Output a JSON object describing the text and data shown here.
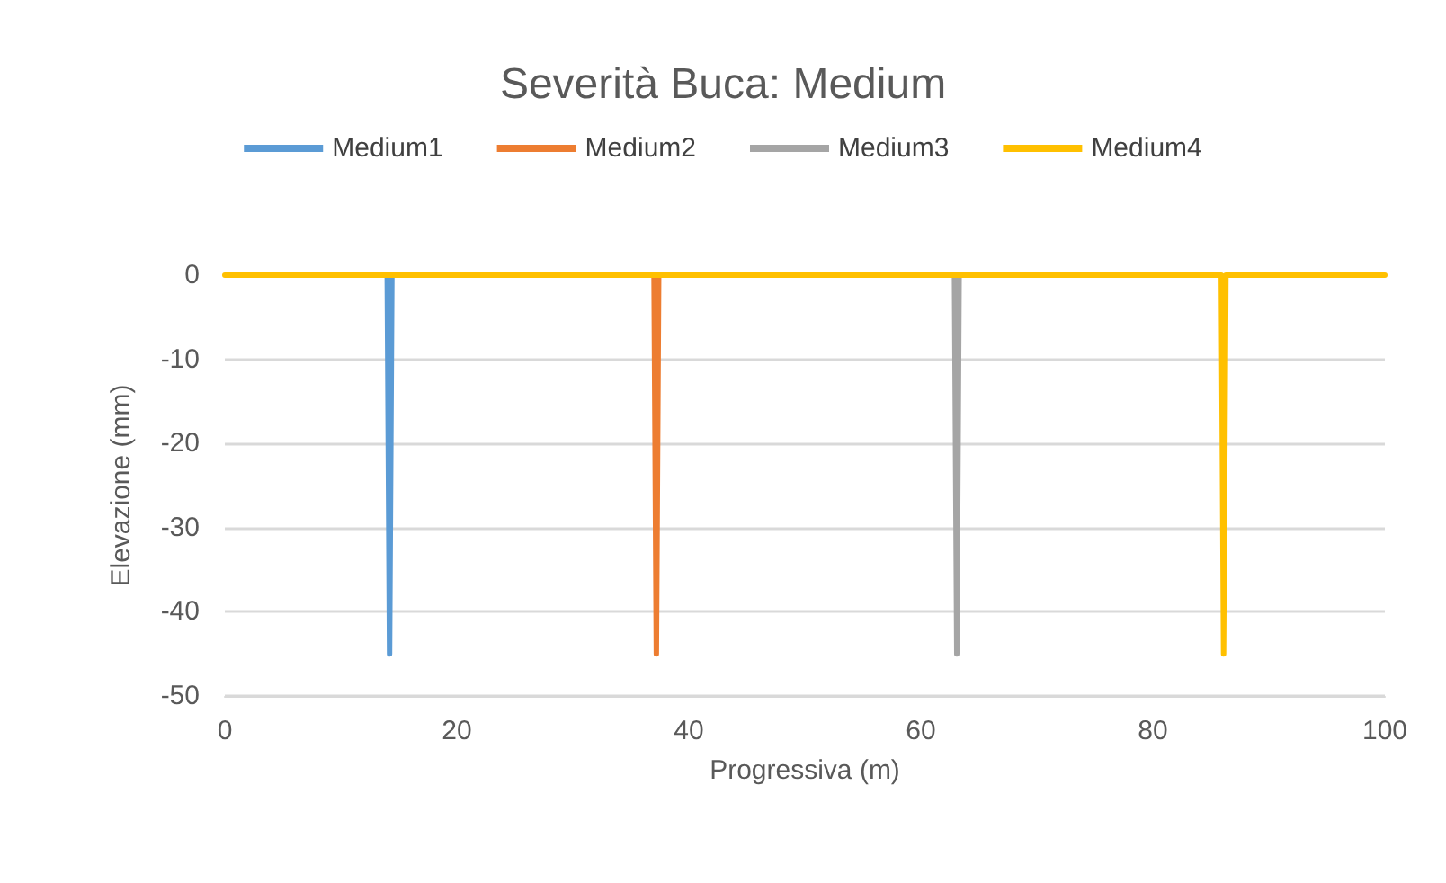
{
  "chart_data": {
    "type": "line",
    "title": "Severità Buca: Medium",
    "xlabel": "Progressiva (m)",
    "ylabel": "Elevazione (mm)",
    "series": [
      {
        "name": "Medium1",
        "color": "#5b9bd5",
        "x": [
          14.0,
          14.2,
          14.4
        ],
        "values": [
          0,
          -45,
          0
        ]
      },
      {
        "name": "Medium2",
        "color": "#ed7d31",
        "x": [
          37.0,
          37.2,
          37.4
        ],
        "values": [
          0,
          -45,
          0
        ]
      },
      {
        "name": "Medium3",
        "color": "#a5a5a5",
        "x": [
          62.9,
          63.1,
          63.3
        ],
        "values": [
          0,
          -45,
          0
        ]
      },
      {
        "name": "Medium4",
        "color": "#ffc000",
        "x": [
          0,
          85.9,
          86.1,
          86.3,
          100
        ],
        "values": [
          0,
          0,
          -45,
          0,
          0
        ]
      }
    ],
    "xlim": [
      0,
      100
    ],
    "xticks": [
      0,
      20,
      40,
      60,
      80,
      100
    ],
    "ylim": [
      -50,
      0
    ],
    "yticks": [
      -50,
      -40,
      -30,
      -20,
      -10,
      0
    ],
    "grid": "y",
    "legend": "top",
    "marker": "none",
    "line_style": "solid"
  }
}
